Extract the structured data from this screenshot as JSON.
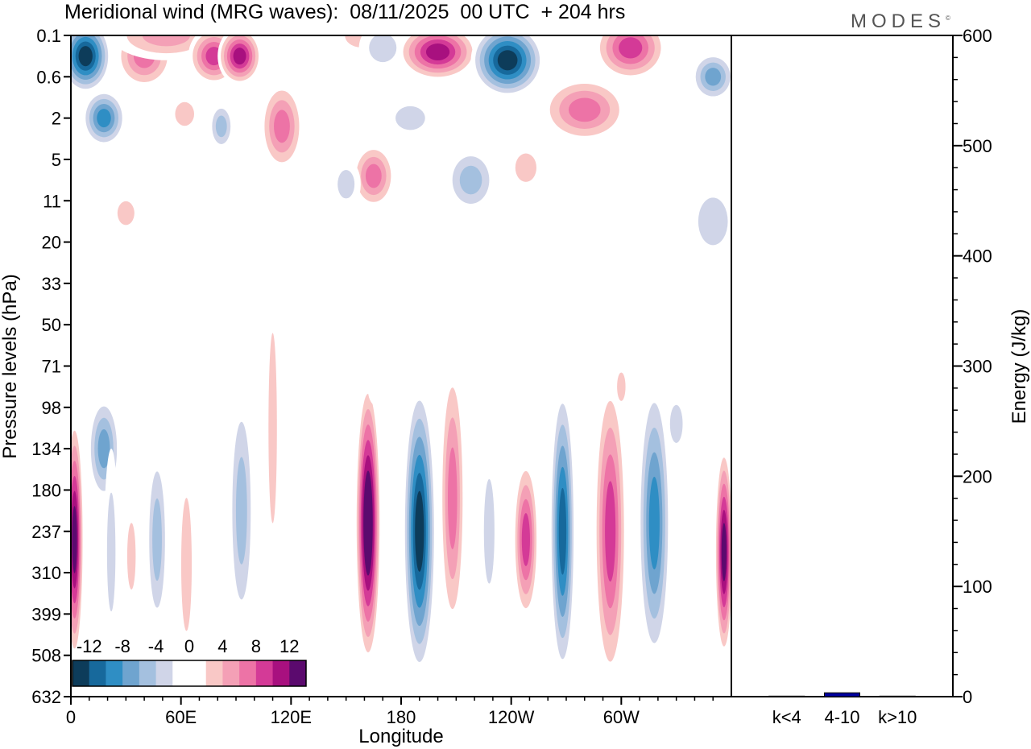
{
  "header": {
    "title": "Meridional wind (MRG waves):  08/11/2025  00 UTC  + 204 hrs",
    "logo": "MODES",
    "logo_mark": "©"
  },
  "chart_data": [
    {
      "type": "heatmap",
      "title": "Meridional wind (MRG waves)",
      "xlabel": "Longitude",
      "ylabel": "Pressure levels (hPa)",
      "x_ticks": [
        "0",
        "60E",
        "120E",
        "180",
        "120W",
        "60W"
      ],
      "y_ticks": [
        "0.1",
        "0.6",
        "2",
        "5",
        "11",
        "20",
        "33",
        "50",
        "71",
        "98",
        "134",
        "180",
        "237",
        "310",
        "399",
        "508",
        "632"
      ],
      "colorbar": {
        "labels": [
          "-12",
          "-8",
          "-4",
          "0",
          "4",
          "8",
          "12"
        ],
        "colors": [
          "#0d3c5a",
          "#17699c",
          "#2f8ec4",
          "#6fa4cf",
          "#a4c0df",
          "#d0d5e8",
          "#ffffff",
          "#ffffff",
          "#f9c8c6",
          "#f4a0b6",
          "#ed73a6",
          "#d43a97",
          "#a8107f",
          "#5b0a6e"
        ]
      },
      "regions": [
        {
          "lon": 8,
          "lev": 0.5,
          "w": 14,
          "h": 0.9,
          "v": -14
        },
        {
          "lon": 18,
          "lev": 2.0,
          "w": 12,
          "h": 0.7,
          "v": -10
        },
        {
          "lon": 40,
          "lev": 0.5,
          "w": 16,
          "h": 0.8,
          "v": 9
        },
        {
          "lon": 52,
          "lev": 0.0,
          "w": 30,
          "h": 0.6,
          "v": 6
        },
        {
          "lon": 78,
          "lev": 0.5,
          "w": 14,
          "h": 0.7,
          "v": 10
        },
        {
          "lon": 92,
          "lev": 0.5,
          "w": 12,
          "h": 0.7,
          "v": 12
        },
        {
          "lon": 62,
          "lev": 1.9,
          "w": 9,
          "h": 0.5,
          "v": 4
        },
        {
          "lon": 82,
          "lev": 2.2,
          "w": 7,
          "h": 0.6,
          "v": -6
        },
        {
          "lon": 115,
          "lev": 2.2,
          "w": 12,
          "h": 1.1,
          "v": 9
        },
        {
          "lon": 158,
          "lev": 0.0,
          "w": 15,
          "h": 0.5,
          "v": 4
        },
        {
          "lon": 170,
          "lev": 0.3,
          "w": 13,
          "h": 0.6,
          "v": -5
        },
        {
          "lon": 200,
          "lev": 0.4,
          "w": 22,
          "h": 0.7,
          "v": 13
        },
        {
          "lon": 238,
          "lev": 0.6,
          "w": 20,
          "h": 0.9,
          "v": -14
        },
        {
          "lon": 185,
          "lev": 2.0,
          "w": 14,
          "h": 0.5,
          "v": -4
        },
        {
          "lon": 165,
          "lev": 3.4,
          "w": 12,
          "h": 0.8,
          "v": 8
        },
        {
          "lon": 218,
          "lev": 3.5,
          "w": 14,
          "h": 0.8,
          "v": -7
        },
        {
          "lon": 248,
          "lev": 3.2,
          "w": 10,
          "h": 0.6,
          "v": 5
        },
        {
          "lon": 280,
          "lev": 1.8,
          "w": 24,
          "h": 0.8,
          "v": 8
        },
        {
          "lon": 305,
          "lev": 0.3,
          "w": 20,
          "h": 0.8,
          "v": 11
        },
        {
          "lon": 350,
          "lev": 1.0,
          "w": 12,
          "h": 0.6,
          "v": -8
        },
        {
          "lon": 150,
          "lev": 3.6,
          "w": 8,
          "h": 0.6,
          "v": -4
        },
        {
          "lon": 30,
          "lev": 4.3,
          "w": 8,
          "h": 0.5,
          "v": 4
        },
        {
          "lon": 350,
          "lev": 4.5,
          "w": 14,
          "h": 1.0,
          "v": -4
        },
        {
          "lon": 215,
          "lev": 5.0,
          "w": 14,
          "h": 0.6,
          "v": 3
        },
        {
          "lon": 255,
          "lev": 4.6,
          "w": 12,
          "h": 0.5,
          "v": -3
        },
        {
          "lon": 2,
          "lev": 12.2,
          "w": 5,
          "h": 3.0,
          "v": 14
        },
        {
          "lon": 18,
          "lev": 10.0,
          "w": 9,
          "h": 1.3,
          "v": -8
        },
        {
          "lon": 22,
          "lev": 12.5,
          "w": 4,
          "h": 2.5,
          "v": -4
        },
        {
          "lon": 33,
          "lev": 12.6,
          "w": 4,
          "h": 1.4,
          "v": 5
        },
        {
          "lon": 47,
          "lev": 12.2,
          "w": 6,
          "h": 2.3,
          "v": -6
        },
        {
          "lon": 63,
          "lev": 12.8,
          "w": 5,
          "h": 2.8,
          "v": 4
        },
        {
          "lon": 93,
          "lev": 11.5,
          "w": 7,
          "h": 3.0,
          "v": -7
        },
        {
          "lon": 110,
          "lev": 9.5,
          "w": 4,
          "h": 4.0,
          "v": 4
        },
        {
          "lon": 162,
          "lev": 11.8,
          "w": 7,
          "h": 3.5,
          "v": 16
        },
        {
          "lon": 190,
          "lev": 12.0,
          "w": 9,
          "h": 3.6,
          "v": -15
        },
        {
          "lon": 208,
          "lev": 11.2,
          "w": 7,
          "h": 3.4,
          "v": 8
        },
        {
          "lon": 228,
          "lev": 12.0,
          "w": 5,
          "h": 2.2,
          "v": -4
        },
        {
          "lon": 248,
          "lev": 12.2,
          "w": 7,
          "h": 2.0,
          "v": 11
        },
        {
          "lon": 268,
          "lev": 12.0,
          "w": 7,
          "h": 3.6,
          "v": -12
        },
        {
          "lon": 294,
          "lev": 12.0,
          "w": 9,
          "h": 3.8,
          "v": 11
        },
        {
          "lon": 318,
          "lev": 11.8,
          "w": 9,
          "h": 3.5,
          "v": -10
        },
        {
          "lon": 330,
          "lev": 9.4,
          "w": 6,
          "h": 0.8,
          "v": -4
        },
        {
          "lon": 356,
          "lev": 12.5,
          "w": 5,
          "h": 2.6,
          "v": 14
        },
        {
          "lon": 55,
          "lev": 7.6,
          "w": 10,
          "h": 0.6,
          "v": -3
        },
        {
          "lon": 168,
          "lev": 8.6,
          "w": 6,
          "h": 0.4,
          "v": 3
        },
        {
          "lon": 320,
          "lev": 7.0,
          "w": 10,
          "h": 0.5,
          "v": -3
        },
        {
          "lon": 300,
          "lev": 8.5,
          "w": 4,
          "h": 0.6,
          "v": 4
        },
        {
          "lon": 128,
          "lev": 16.0,
          "w": 4,
          "h": 0.8,
          "v": -3
        },
        {
          "lon": 145,
          "lev": 15.8,
          "w": 4,
          "h": 0.8,
          "v": 3
        },
        {
          "lon": 225,
          "lev": 15.8,
          "w": 4,
          "h": 0.8,
          "v": -3
        },
        {
          "lon": 340,
          "lev": 15.8,
          "w": 3,
          "h": 0.8,
          "v": 3
        }
      ]
    },
    {
      "type": "bar",
      "categories": [
        "k<4",
        "4-10",
        "k>10"
      ],
      "values": [
        0.5,
        3.5,
        0.5
      ],
      "ylabel": "Energy (J/kg)",
      "ylim": [
        0,
        600
      ],
      "y_ticks": [
        "0",
        "100",
        "200",
        "300",
        "400",
        "500",
        "600"
      ],
      "bar_color": "#0000a0"
    }
  ]
}
